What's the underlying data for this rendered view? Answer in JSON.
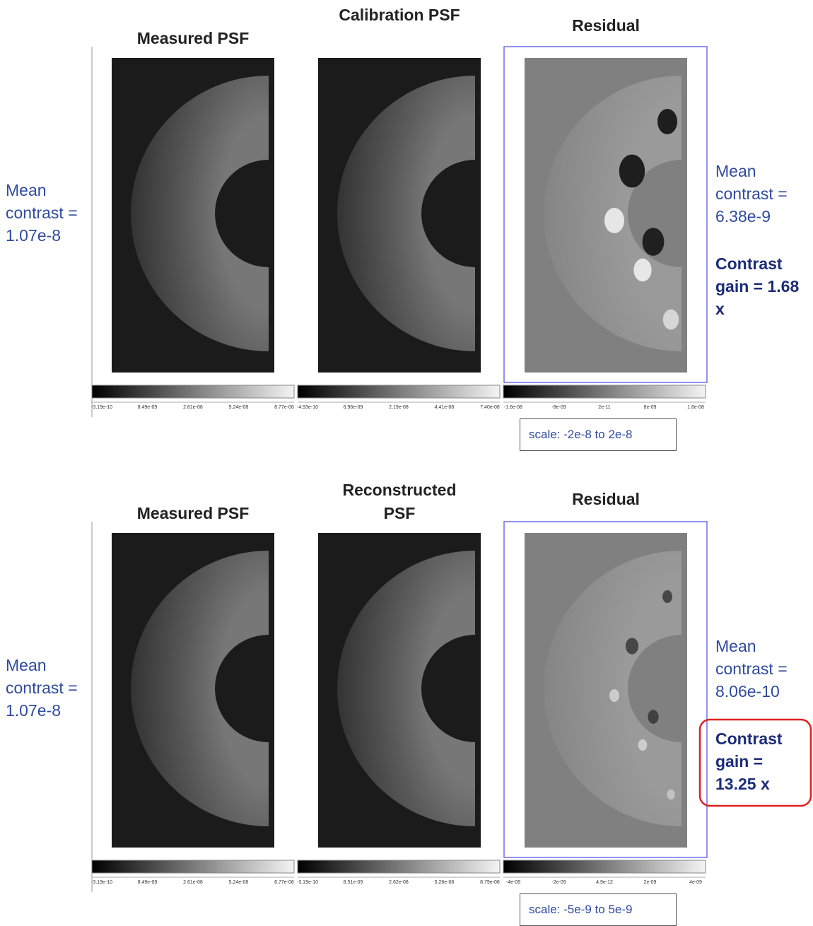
{
  "rows": [
    {
      "left_note": "Mean contrast = 1.07e-8",
      "panels": [
        {
          "title": "Measured PSF",
          "colorbar": [
            "-3.19e-10",
            "8.49e-09",
            "2.61e-08",
            "5.24e-08",
            "8.77e-08"
          ]
        },
        {
          "title": "Calibration PSF",
          "colorbar": [
            "-4.93e-10",
            "6.96e-09",
            "2.19e-08",
            "4.41e-08",
            "7.40e-08"
          ]
        },
        {
          "title": "Residual",
          "colorbar": [
            "-1.6e-08",
            "-8e-09",
            "2e-11",
            "8e-09",
            "1.6e-08"
          ]
        }
      ],
      "scale": "scale: -2e-8 to 2e-8",
      "right_note": "Mean contrast = 6.38e-9",
      "gain": "Contrast gain = 1.68 x"
    },
    {
      "left_note": "Mean contrast = 1.07e-8",
      "panels": [
        {
          "title": "Measured PSF",
          "colorbar": [
            "-3.19e-10",
            "8.49e-09",
            "2.61e-08",
            "5.24e-08",
            "8.77e-08"
          ]
        },
        {
          "title": "Reconstructed PSF",
          "colorbar": [
            "-3.19e-10",
            "8.51e-09",
            "2.62e-08",
            "5.26e-08",
            "8.79e-08"
          ]
        },
        {
          "title": "Residual",
          "colorbar": [
            "-4e-09",
            "-2e-09",
            "4.9e-12",
            "2e-09",
            "4e-09"
          ]
        }
      ],
      "scale": "scale: -5e-9 to 5e-9",
      "right_note": "Mean contrast = 8.06e-10",
      "gain": "Contrast gain = 13.25 x"
    }
  ]
}
